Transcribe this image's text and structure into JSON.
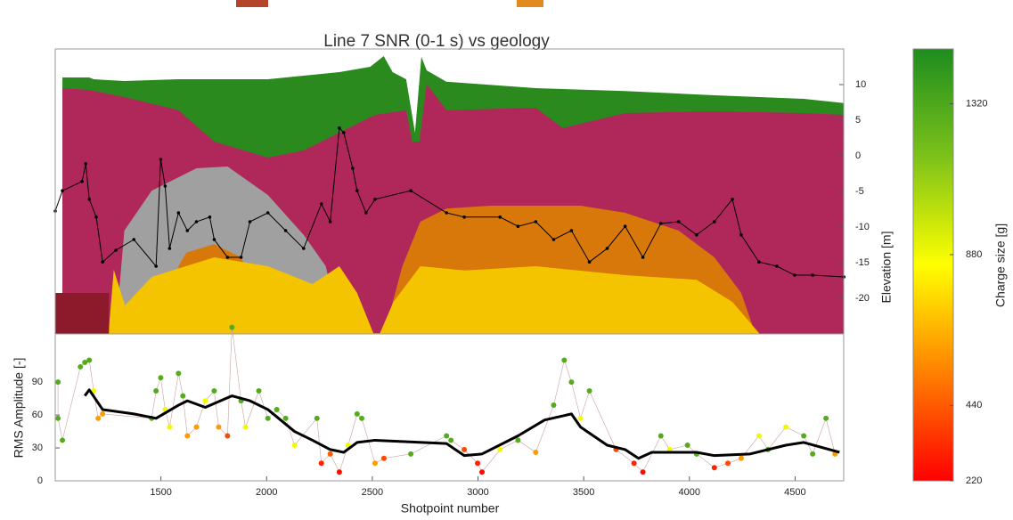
{
  "chart_data": [
    {
      "type": "area",
      "title": "Line 7 SNR (0-1 s) vs geology",
      "y_label": "Elevation [m]",
      "xlim": [
        1000,
        4730
      ],
      "ylim": [
        -25,
        15
      ],
      "yticks": [
        -20,
        -15,
        -10,
        -5,
        0,
        5,
        10
      ],
      "layers": [
        {
          "color": "#2a8a1e",
          "x": [
            1034,
            1161,
            1182,
            1327,
            1580,
            2006,
            2344,
            2490,
            2554,
            2596,
            2660,
            2702,
            2732,
            2757,
            2850,
            3273,
            3696,
            4118,
            4541,
            4731
          ],
          "values": [
            11,
            11,
            10.75,
            10.5,
            10.75,
            10.75,
            11.75,
            12.5,
            14,
            11.75,
            10.75,
            3.25,
            13.9,
            12,
            10.4,
            9.5,
            9.1,
            8.5,
            8,
            7.4
          ]
        },
        {
          "color": "#b0285a",
          "x": [
            1034,
            1161,
            1327,
            1583,
            1752,
            2006,
            2175,
            2344,
            2513,
            2660,
            2689,
            2723,
            2757,
            2851,
            3273,
            3400,
            3696,
            4118,
            4541,
            4731
          ],
          "values": [
            9.5,
            9.25,
            8.25,
            6.4,
            2,
            -0.25,
            0.75,
            3.25,
            5.75,
            6.4,
            2,
            2,
            10.1,
            6.4,
            6.75,
            3.9,
            6,
            6.25,
            6,
            5.75
          ]
        },
        {
          "color": "#a0a0a0",
          "x": [
            1285,
            1327,
            1456,
            1668,
            1815,
            2006,
            2175,
            2280,
            2308,
            2321
          ],
          "values": [
            -24.9,
            -10.5,
            -4.9,
            -1.75,
            -1.5,
            -5.5,
            -11.1,
            -15.5,
            -19.25,
            -24.9
          ]
        },
        {
          "color": "#d9780a",
          "x": [
            1583,
            1620,
            1752,
            1879,
            1900,
            2400,
            2557,
            2642,
            2727,
            2851,
            3061,
            3485,
            3696,
            3949,
            4118,
            4245,
            4311
          ],
          "values": [
            -15.5,
            -13.6,
            -12.4,
            -14.25,
            -15.5,
            null,
            -24.9,
            -15.5,
            -9.25,
            -7.4,
            -7,
            -7,
            -8,
            -10.5,
            -14.25,
            -19.25,
            -24.9
          ]
        },
        {
          "color": "#f5c400",
          "x": [
            1252,
            1277,
            1330,
            1456,
            1752,
            2006,
            2217,
            2344,
            2428,
            2505,
            2536,
            2600,
            2727,
            2939,
            3273,
            3696,
            4034,
            4203,
            4330
          ],
          "values": [
            -24.9,
            -16,
            -21,
            -17,
            -14.25,
            -15.5,
            -18,
            -15.5,
            -19.25,
            -24.9,
            -24.9,
            -20.5,
            -15.5,
            -16.1,
            -15.5,
            -16.75,
            -17.4,
            -20.5,
            -24.9
          ]
        },
        {
          "color": "#8c1a2a",
          "x": [
            1000,
            1254
          ],
          "values": [
            -19.25,
            -19.25
          ]
        }
      ],
      "series": [
        {
          "color": "#000000",
          "x": [
            1000,
            1034,
            1127,
            1144,
            1161,
            1194,
            1224,
            1287,
            1372,
            1477,
            1499,
            1520,
            1541,
            1583,
            1625,
            1668,
            1731,
            1752,
            1815,
            1879,
            1921,
            2006,
            2090,
            2175,
            2259,
            2301,
            2344,
            2365,
            2407,
            2428,
            2470,
            2513,
            2682,
            2851,
            2935,
            3104,
            3189,
            3273,
            3358,
            3442,
            3527,
            3611,
            3696,
            3780,
            3865,
            3949,
            4034,
            4118,
            4203,
            4245,
            4329,
            4414,
            4498,
            4583,
            4731
          ],
          "values": [
            -7.75,
            -4.9,
            -3.6,
            -1.1,
            -6.1,
            -8.6,
            -14.9,
            -13.25,
            -11.75,
            -15.5,
            -0.5,
            -4.25,
            -13,
            -8,
            -10.5,
            -9.25,
            -8.6,
            -11.75,
            -14.25,
            -14.25,
            -9.25,
            -8,
            -10.5,
            -13,
            -6.75,
            -9.25,
            3.9,
            3.25,
            -1.75,
            -4.9,
            -8,
            -6.1,
            -4.9,
            -8,
            -8.6,
            -8.6,
            -9.9,
            -9.25,
            -11.75,
            -10.5,
            -14.9,
            -13,
            -9.9,
            -14.25,
            -9.5,
            -9.25,
            -11.1,
            -9.25,
            -6.1,
            -11.1,
            -14.9,
            -15.5,
            -16.75,
            -16.75,
            -17
          ]
        }
      ]
    },
    {
      "type": "scatter",
      "x_label": "Shotpoint number",
      "y_label": "RMS Amplitude [-]",
      "xlim": [
        1000,
        4730
      ],
      "ylim": [
        0,
        134
      ],
      "xticks": [
        1500,
        2000,
        2500,
        3000,
        3500,
        4000,
        4500
      ],
      "yticks": [
        0,
        30,
        60,
        90
      ],
      "x": [
        1013,
        1013,
        1034,
        1119,
        1140,
        1161,
        1182,
        1203,
        1224,
        1456,
        1477,
        1499,
        1520,
        1541,
        1583,
        1604,
        1625,
        1668,
        1710,
        1752,
        1773,
        1815,
        1836,
        1879,
        1900,
        1963,
        2006,
        2048,
        2090,
        2132,
        2238,
        2259,
        2301,
        2344,
        2386,
        2428,
        2450,
        2513,
        2555,
        2682,
        2851,
        2872,
        2935,
        2998,
        3019,
        3104,
        3189,
        3273,
        3358,
        3408,
        3442,
        3485,
        3527,
        3653,
        3738,
        3780,
        3865,
        3907,
        3991,
        4034,
        4118,
        4182,
        4245,
        4329,
        4372,
        4456,
        4541,
        4583,
        4646,
        4689
      ],
      "values": [
        90,
        57,
        37,
        104,
        108,
        110,
        82,
        57,
        61,
        57,
        82,
        94,
        65,
        49,
        98,
        77.5,
        41,
        49,
        73,
        82,
        49,
        41,
        140,
        73,
        49,
        82,
        57,
        65,
        57,
        32.5,
        57,
        16,
        24.5,
        8,
        32.5,
        61,
        57,
        16,
        20.5,
        24.5,
        41,
        37,
        28.5,
        16,
        8,
        28.5,
        37,
        26,
        69,
        110,
        90,
        57,
        82,
        28.5,
        16,
        8,
        41,
        28.5,
        32.5,
        24.5,
        12,
        16,
        20.5,
        41,
        28.5,
        49,
        41,
        24.5,
        57,
        24.5
      ],
      "charge": [
        1300,
        1300,
        1300,
        1300,
        1300,
        1300,
        880,
        600,
        600,
        1300,
        1300,
        1300,
        880,
        880,
        1300,
        1300,
        600,
        600,
        880,
        1300,
        600,
        400,
        1300,
        1300,
        880,
        1300,
        1300,
        1300,
        1300,
        880,
        1300,
        300,
        440,
        250,
        880,
        1300,
        1300,
        600,
        400,
        1300,
        1300,
        1300,
        400,
        300,
        250,
        880,
        1300,
        600,
        1300,
        1300,
        1300,
        880,
        1300,
        400,
        300,
        250,
        1300,
        880,
        1300,
        1300,
        300,
        400,
        600,
        880,
        1300,
        880,
        1300,
        1300,
        1300,
        600
      ],
      "colorbar": {
        "label": "Charge size [g]",
        "lim": [
          220,
          1480
        ],
        "ticks": [
          220,
          440,
          880,
          1320
        ],
        "colors": [
          "#ff0000",
          "#ff8000",
          "#ffff00",
          "#7cc21a",
          "#1e8c1e"
        ]
      },
      "trend": {
        "color": "#000000",
        "x": [
          1140,
          1161,
          1224,
          1372,
          1477,
          1583,
          1625,
          1710,
          1836,
          1921,
          2006,
          2132,
          2217,
          2301,
          2365,
          2428,
          2513,
          2851,
          2935,
          3019,
          3189,
          3315,
          3442,
          3485,
          3611,
          3696,
          3759,
          3822,
          4034,
          4118,
          4287,
          4456,
          4541,
          4710
        ],
        "values": [
          77.5,
          83,
          65,
          61,
          57,
          69,
          73,
          67,
          77.5,
          73,
          65,
          45,
          37,
          28.5,
          26,
          35,
          37,
          34,
          23,
          24.5,
          41,
          55.5,
          61,
          49,
          32.5,
          28.5,
          20.5,
          26,
          26,
          23,
          24.5,
          32.5,
          35,
          26
        ]
      }
    }
  ]
}
